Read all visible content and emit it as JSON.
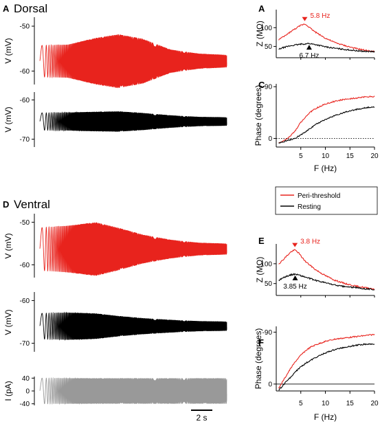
{
  "figure": {
    "sections": [
      {
        "letter": "A",
        "title": "Dorsal"
      },
      {
        "letter": "D",
        "title": "Ventral"
      }
    ],
    "scale_bar_label": "2 s"
  },
  "legend": {
    "entries": [
      {
        "label": "Peri-threshold",
        "color": "#e8231d"
      },
      {
        "label": "Resting",
        "color": "#000000"
      }
    ]
  },
  "colors": {
    "red": "#e8231d",
    "black": "#000000",
    "gray": "#999999"
  },
  "chart_data": [
    {
      "id": "A-red",
      "panel": "A",
      "type": "line",
      "ylabel": "V (mV)",
      "yticks": [
        -50,
        -60
      ],
      "ylim": [
        -63,
        -48
      ],
      "color": "#e8231d",
      "trace": {
        "baseline": -57.8,
        "envelope_x": [
          0,
          0.15,
          0.3,
          0.42,
          0.55,
          0.7,
          0.85,
          1.0
        ],
        "envelope_amp": [
          3.5,
          3.7,
          5.2,
          6.0,
          5.0,
          2.6,
          1.7,
          1.4
        ]
      }
    },
    {
      "id": "A-black",
      "panel": "A",
      "type": "line",
      "ylabel": "V (mV)",
      "yticks": [
        -60,
        -70
      ],
      "ylim": [
        -72,
        -58
      ],
      "color": "#000000",
      "trace": {
        "baseline": -65.5,
        "envelope_x": [
          0,
          0.15,
          0.3,
          0.42,
          0.55,
          0.7,
          0.85,
          1.0
        ],
        "envelope_amp": [
          2.2,
          2.3,
          2.5,
          2.6,
          2.2,
          1.6,
          1.2,
          1.1
        ]
      }
    },
    {
      "id": "B",
      "panel": "B",
      "type": "line",
      "xlabel": "",
      "ylabel": "Z (MΩ)",
      "yticks": [
        50,
        100
      ],
      "ylim": [
        20,
        148
      ],
      "xlim": [
        0,
        20
      ],
      "series": [
        {
          "color": "#e8231d",
          "x": [
            0.5,
            1,
            2,
            3,
            4,
            5,
            5.8,
            6.5,
            7,
            8,
            9,
            10,
            12,
            14,
            16,
            18,
            20
          ],
          "y": [
            68,
            72,
            80,
            90,
            98,
            106,
            110,
            104,
            98,
            88,
            80,
            72,
            60,
            52,
            45,
            40,
            36
          ]
        },
        {
          "color": "#000000",
          "x": [
            0.5,
            1,
            2,
            3,
            4,
            5,
            6,
            6.7,
            7.5,
            8,
            9,
            10,
            12,
            14,
            16,
            18,
            20
          ],
          "y": [
            42,
            45,
            49,
            52,
            54,
            56,
            57,
            58,
            56,
            55,
            52,
            49,
            45,
            42,
            39,
            37,
            36
          ]
        }
      ],
      "annotations": [
        {
          "text": "5.8 Hz",
          "x": 5.8,
          "color": "#e8231d"
        },
        {
          "text": "6.7 Hz",
          "x": 6.7,
          "color": "#000000"
        }
      ]
    },
    {
      "id": "C",
      "panel": "C",
      "type": "line",
      "xlabel": "F (Hz)",
      "ylabel": "Phase (degrees)",
      "yticks": [
        -90,
        0
      ],
      "ylim": [
        -95,
        15
      ],
      "xlim": [
        0,
        20
      ],
      "xticks": [
        5,
        10,
        15,
        20
      ],
      "series": [
        {
          "color": "#e8231d",
          "x": [
            0.5,
            1,
            2,
            3,
            4,
            5,
            6,
            7,
            8,
            10,
            12,
            14,
            16,
            18,
            20
          ],
          "y": [
            8,
            6,
            2,
            -5,
            -15,
            -28,
            -38,
            -46,
            -52,
            -60,
            -65,
            -68,
            -70,
            -72,
            -73
          ]
        },
        {
          "color": "#000000",
          "x": [
            0.5,
            1,
            2,
            3,
            4,
            5,
            6,
            7,
            8,
            10,
            12,
            14,
            16,
            18,
            20
          ],
          "y": [
            8,
            7,
            4,
            2,
            -1,
            -6,
            -12,
            -18,
            -24,
            -33,
            -40,
            -46,
            -50,
            -53,
            -55
          ]
        }
      ]
    },
    {
      "id": "D-red",
      "panel": "D",
      "type": "line",
      "ylabel": "V (mV)",
      "yticks": [
        -50,
        -60
      ],
      "ylim": [
        -63,
        -48
      ],
      "color": "#e8231d",
      "trace": {
        "baseline": -56.3,
        "envelope_x": [
          0,
          0.15,
          0.3,
          0.42,
          0.55,
          0.7,
          0.85,
          1.0
        ],
        "envelope_amp": [
          5.0,
          5.5,
          6.3,
          5.0,
          3.4,
          2.2,
          1.5,
          1.3
        ]
      }
    },
    {
      "id": "D-black",
      "panel": "D",
      "type": "line",
      "ylabel": "V (mV)",
      "yticks": [
        -60,
        -70
      ],
      "ylim": [
        -72,
        -58
      ],
      "color": "#000000",
      "trace": {
        "baseline": -66.0,
        "envelope_x": [
          0,
          0.15,
          0.3,
          0.42,
          0.55,
          0.7,
          0.85,
          1.0
        ],
        "envelope_amp": [
          3.0,
          3.2,
          3.0,
          2.4,
          1.9,
          1.5,
          1.2,
          1.1
        ]
      }
    },
    {
      "id": "D-current",
      "panel": "D",
      "type": "line",
      "ylabel": "I (pA)",
      "yticks": [
        40,
        0,
        -40
      ],
      "ylim": [
        -45,
        45
      ],
      "color": "#999999",
      "trace": {
        "baseline": 0,
        "envelope_x": [
          0,
          1
        ],
        "envelope_amp": [
          40,
          40
        ]
      }
    },
    {
      "id": "E",
      "panel": "E",
      "type": "line",
      "xlabel": "",
      "ylabel": "Z (MΩ)",
      "yticks": [
        50,
        100
      ],
      "ylim": [
        20,
        150
      ],
      "xlim": [
        0,
        20
      ],
      "series": [
        {
          "color": "#e8231d",
          "x": [
            0.5,
            1,
            2,
            3,
            3.8,
            4.5,
            5,
            6,
            7,
            8,
            10,
            12,
            14,
            16,
            18,
            20
          ],
          "y": [
            100,
            105,
            118,
            130,
            135,
            128,
            120,
            105,
            95,
            85,
            70,
            58,
            50,
            44,
            40,
            36
          ]
        },
        {
          "color": "#000000",
          "x": [
            0.5,
            1,
            2,
            3,
            3.85,
            4.5,
            5,
            6,
            7,
            8,
            10,
            12,
            14,
            16,
            18,
            20
          ],
          "y": [
            58,
            62,
            68,
            72,
            74,
            72,
            70,
            66,
            62,
            58,
            52,
            46,
            42,
            40,
            37,
            35
          ]
        }
      ],
      "annotations": [
        {
          "text": "3.8 Hz",
          "x": 3.8,
          "color": "#e8231d"
        },
        {
          "text": "3.85 Hz",
          "x": 3.85,
          "color": "#000000"
        }
      ]
    },
    {
      "id": "F",
      "panel": "F",
      "type": "line",
      "xlabel": "F (Hz)",
      "ylabel": "Phase (degrees)",
      "yticks": [
        -90,
        0
      ],
      "ylim": [
        -100,
        12
      ],
      "xlim": [
        0,
        20
      ],
      "xticks": [
        5,
        10,
        15,
        20
      ],
      "series": [
        {
          "color": "#e8231d",
          "x": [
            0.5,
            1,
            2,
            3,
            4,
            5,
            6,
            7,
            8,
            10,
            12,
            14,
            16,
            18,
            20
          ],
          "y": [
            8,
            0,
            -14,
            -28,
            -40,
            -50,
            -58,
            -64,
            -68,
            -74,
            -78,
            -80,
            -82,
            -84,
            -86
          ]
        },
        {
          "color": "#000000",
          "x": [
            0.5,
            1,
            2,
            3,
            4,
            5,
            6,
            7,
            8,
            10,
            12,
            14,
            16,
            18,
            20
          ],
          "y": [
            10,
            6,
            -4,
            -12,
            -22,
            -30,
            -36,
            -41,
            -46,
            -54,
            -60,
            -64,
            -67,
            -69,
            -70
          ]
        }
      ]
    }
  ]
}
